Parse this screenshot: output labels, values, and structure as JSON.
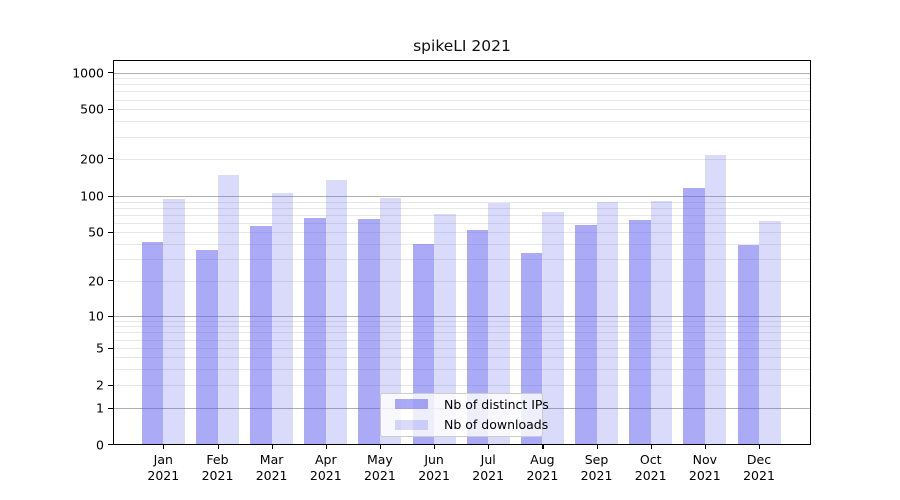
{
  "chart_data": {
    "type": "bar",
    "title": "spikeLI 2021",
    "categories": [
      "Jan 2021",
      "Feb 2021",
      "Mar 2021",
      "Apr 2021",
      "May 2021",
      "Jun 2021",
      "Jul 2021",
      "Aug 2021",
      "Sep 2021",
      "Oct 2021",
      "Nov 2021",
      "Dec 2021"
    ],
    "series": [
      {
        "name": "Nb of distinct IPs",
        "color": "#5555ee",
        "opacity": 0.5,
        "values": [
          42,
          36,
          56,
          66,
          64,
          40,
          52,
          34,
          58,
          63,
          117,
          39
        ]
      },
      {
        "name": "Nb of downloads",
        "color": "#5555ee",
        "opacity": 0.22,
        "values": [
          95,
          148,
          106,
          134,
          97,
          71,
          88,
          74,
          89,
          91,
          212,
          62
        ]
      }
    ],
    "xlabel": "",
    "ylabel": "",
    "yscale": "log-like with 0 baseline",
    "ylim": [
      0,
      1000
    ],
    "ytick_labels": [
      0,
      1,
      2,
      5,
      10,
      20,
      50,
      100,
      200,
      500,
      1000
    ],
    "grid": "horizontal major+minor",
    "legend_position": "lower center"
  },
  "colors": {
    "bar_base": "#5555ee",
    "bar_dark_rendered": "#aaaaf6",
    "bar_light_rendered": "#d8d8fa",
    "grid_major": "#b0b0b0",
    "grid_minor": "#e7e7e7",
    "axis": "#000000",
    "legend_border": "#cccccc"
  }
}
